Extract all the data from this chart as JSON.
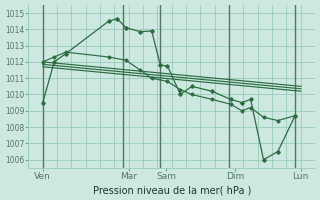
{
  "title": "Pression niveau de la mer( hPa )",
  "bg_color": "#cce8e0",
  "grid_color": "#99ccbb",
  "line_color": "#2d6b40",
  "dark_vline_color": "#557766",
  "ylim": [
    1005.5,
    1015.5
  ],
  "yticks": [
    1006,
    1007,
    1008,
    1009,
    1010,
    1011,
    1012,
    1013,
    1014,
    1015
  ],
  "xlim": [
    0,
    10.0
  ],
  "num_vgrid": 20,
  "xtick_labels": [
    "Ven",
    "Mar",
    "Sam",
    "Dim",
    "Lun"
  ],
  "xtick_positions": [
    0.5,
    3.5,
    4.8,
    7.2,
    9.5
  ],
  "day_vlines": [
    0.5,
    3.3,
    4.6,
    7.0,
    9.3
  ],
  "main_x": [
    0.5,
    0.9,
    1.3,
    2.8,
    3.1,
    3.4,
    3.9,
    4.3,
    4.6,
    4.85,
    5.3,
    5.7,
    6.4,
    7.05,
    7.45,
    7.75,
    8.2,
    8.7,
    9.3
  ],
  "main_y": [
    1009.5,
    1012.0,
    1012.5,
    1014.5,
    1014.65,
    1014.1,
    1013.85,
    1013.9,
    1011.8,
    1011.75,
    1010.0,
    1010.5,
    1010.2,
    1009.7,
    1009.5,
    1009.7,
    1006.0,
    1006.5,
    1008.7
  ],
  "trend1_x": [
    0.5,
    9.5
  ],
  "trend1_y": [
    1012.0,
    1010.5
  ],
  "trend2_x": [
    0.5,
    9.5
  ],
  "trend2_y": [
    1011.85,
    1010.35
  ],
  "trend3_x": [
    0.5,
    9.5
  ],
  "trend3_y": [
    1011.7,
    1010.2
  ],
  "sub_x": [
    0.5,
    0.9,
    1.3,
    2.8,
    3.4,
    3.9,
    4.3,
    4.85,
    5.3,
    5.7,
    6.4,
    7.05,
    7.45,
    7.75,
    8.2,
    8.7,
    9.3
  ],
  "sub_y": [
    1012.0,
    1012.3,
    1012.6,
    1012.3,
    1012.1,
    1011.5,
    1011.0,
    1010.8,
    1010.3,
    1010.0,
    1009.7,
    1009.4,
    1009.0,
    1009.2,
    1008.6,
    1008.4,
    1008.7
  ],
  "ylabel_fontsize": 5.5,
  "xlabel_fontsize": 7.0,
  "xtick_fontsize": 6.5
}
